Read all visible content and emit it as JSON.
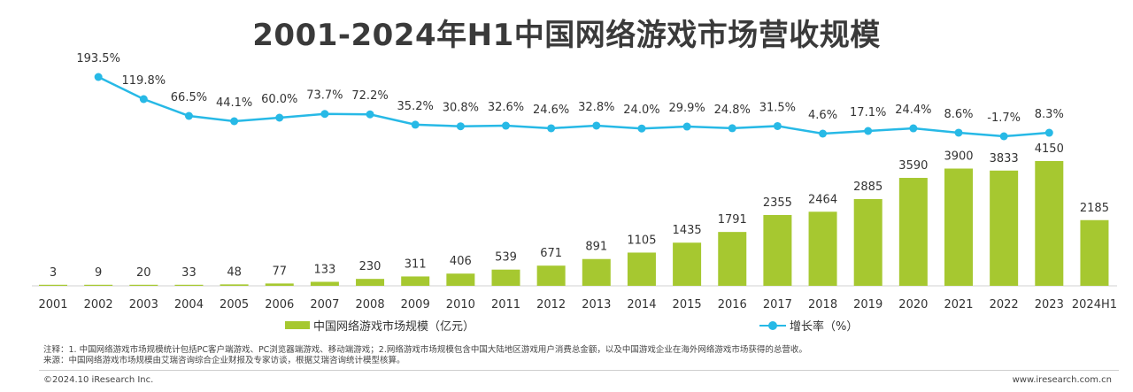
{
  "title": "2001-2024年H1中国网络游戏市场营收规模",
  "chart_data": {
    "type": "bar",
    "categories": [
      "2001",
      "2002",
      "2003",
      "2004",
      "2005",
      "2006",
      "2007",
      "2008",
      "2009",
      "2010",
      "2011",
      "2012",
      "2013",
      "2014",
      "2015",
      "2016",
      "2017",
      "2018",
      "2019",
      "2020",
      "2021",
      "2022",
      "2023",
      "2024H1"
    ],
    "series": [
      {
        "name": "中国网络游戏市场规模（亿元）",
        "type": "bar",
        "color": "#a6c830",
        "values": [
          3,
          9,
          20,
          33,
          48,
          77,
          133,
          230,
          311,
          406,
          539,
          671,
          891,
          1105,
          1435,
          1791,
          2355,
          2464,
          2885,
          3590,
          3900,
          3833,
          4150,
          2185
        ]
      },
      {
        "name": "增长率（%）",
        "type": "line",
        "color": "#27b9e6",
        "values": [
          null,
          193.5,
          119.8,
          66.5,
          44.1,
          60.0,
          73.7,
          72.2,
          35.2,
          30.8,
          32.6,
          24.6,
          32.8,
          24.0,
          29.9,
          24.8,
          31.5,
          4.6,
          17.1,
          24.4,
          8.6,
          -1.7,
          8.3,
          null
        ],
        "labels": [
          null,
          "193.5%",
          "119.8%",
          "66.5%",
          "44.1%",
          "60.0%",
          "73.7%",
          "72.2%",
          "35.2%",
          "30.8%",
          "32.6%",
          "24.6%",
          "32.8%",
          "24.0%",
          "29.9%",
          "24.8%",
          "31.5%",
          "4.6%",
          "17.1%",
          "24.4%",
          "8.6%",
          "-1.7%",
          "8.3%",
          null
        ]
      }
    ],
    "legend": "bottom-center",
    "grid": false
  },
  "notes": {
    "line1": "注释：1. 中国网络游戏市场规模统计包括PC客户端游戏、PC浏览器端游戏、移动端游戏；2.网络游戏市场规模包含中国大陆地区游戏用户消费总金额，以及中国游戏企业在海外网络游戏市场获得的总营收。",
    "line2": "来源：中国网络游戏市场规模由艾瑞咨询综合企业财报及专家访谈，根据艾瑞咨询统计模型核算。"
  },
  "footer": {
    "copyright": "©2024.10 iResearch Inc.",
    "website": "www.iresearch.com.cn"
  }
}
